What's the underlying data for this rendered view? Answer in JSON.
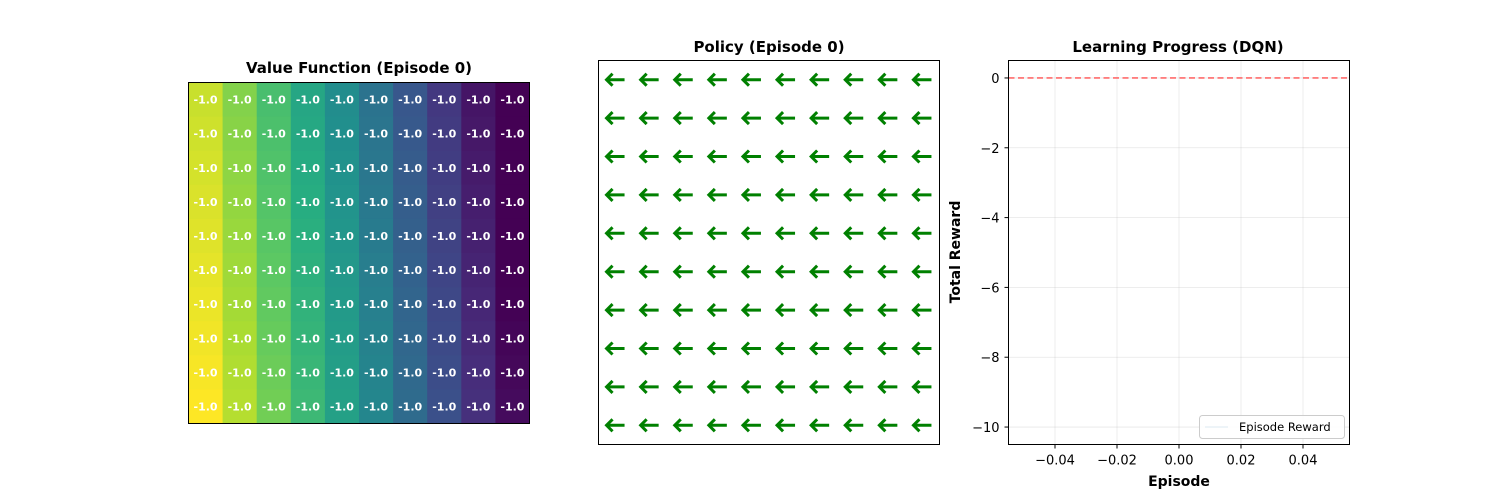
{
  "chart_data": [
    {
      "type": "heatmap",
      "title": "Value Function (Episode 0)",
      "rows": 10,
      "cols": 10,
      "cell_label": "-1.0",
      "values": [
        [
          -1.0,
          -1.0,
          -1.0,
          -1.0,
          -1.0,
          -1.0,
          -1.0,
          -1.0,
          -1.0,
          -1.0
        ],
        [
          -1.0,
          -1.0,
          -1.0,
          -1.0,
          -1.0,
          -1.0,
          -1.0,
          -1.0,
          -1.0,
          -1.0
        ],
        [
          -1.0,
          -1.0,
          -1.0,
          -1.0,
          -1.0,
          -1.0,
          -1.0,
          -1.0,
          -1.0,
          -1.0
        ],
        [
          -1.0,
          -1.0,
          -1.0,
          -1.0,
          -1.0,
          -1.0,
          -1.0,
          -1.0,
          -1.0,
          -1.0
        ],
        [
          -1.0,
          -1.0,
          -1.0,
          -1.0,
          -1.0,
          -1.0,
          -1.0,
          -1.0,
          -1.0,
          -1.0
        ],
        [
          -1.0,
          -1.0,
          -1.0,
          -1.0,
          -1.0,
          -1.0,
          -1.0,
          -1.0,
          -1.0,
          -1.0
        ],
        [
          -1.0,
          -1.0,
          -1.0,
          -1.0,
          -1.0,
          -1.0,
          -1.0,
          -1.0,
          -1.0,
          -1.0
        ],
        [
          -1.0,
          -1.0,
          -1.0,
          -1.0,
          -1.0,
          -1.0,
          -1.0,
          -1.0,
          -1.0,
          -1.0
        ],
        [
          -1.0,
          -1.0,
          -1.0,
          -1.0,
          -1.0,
          -1.0,
          -1.0,
          -1.0,
          -1.0,
          -1.0
        ],
        [
          -1.0,
          -1.0,
          -1.0,
          -1.0,
          -1.0,
          -1.0,
          -1.0,
          -1.0,
          -1.0,
          -1.0
        ]
      ],
      "colormap": "viridis",
      "color_gradient": "yellow at bottom-left to dark purple at top-right"
    },
    {
      "type": "table",
      "title": "Policy (Episode 0)",
      "rows": 10,
      "cols": 10,
      "arrow_glyph": "←",
      "arrow_color": "#008000",
      "action": "left"
    },
    {
      "type": "line",
      "title": "Learning Progress (DQN)",
      "xlabel": "Episode",
      "ylabel": "Total Reward",
      "xlim": [
        -0.055,
        0.055
      ],
      "ylim": [
        -10.5,
        0.5
      ],
      "xticks": [
        "−0.04",
        "−0.02",
        "0.00",
        "0.02",
        "0.04"
      ],
      "xtick_values": [
        -0.04,
        -0.02,
        0.0,
        0.02,
        0.04
      ],
      "yticks": [
        "0",
        "−2",
        "−4",
        "−6",
        "−8",
        "−10"
      ],
      "ytick_values": [
        0,
        -2,
        -4,
        -6,
        -8,
        -10
      ],
      "grid": true,
      "series": [
        {
          "name": "Episode Reward",
          "x": [],
          "y": [],
          "color": "#1f77b4"
        }
      ],
      "reference_line": {
        "y": 0,
        "color": "#ff6b6b",
        "style": "dashed"
      },
      "legend_position": "lower-right"
    }
  ]
}
